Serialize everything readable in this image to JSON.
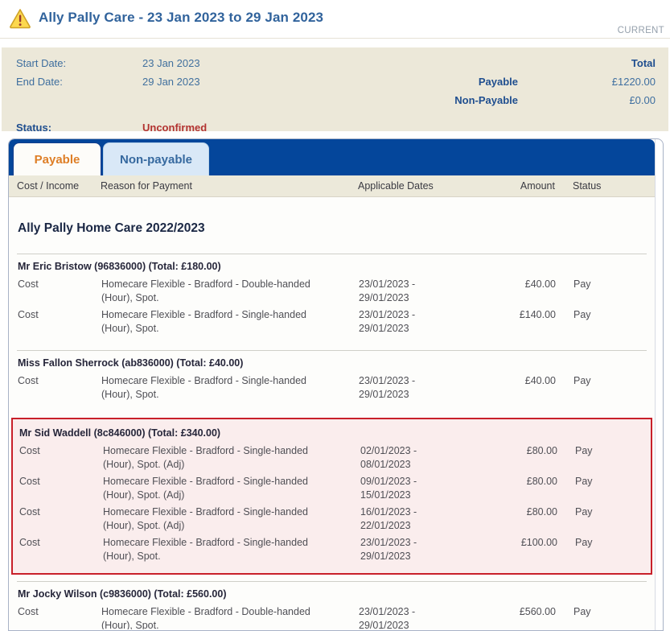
{
  "header": {
    "title": "Ally Pally Care - 23 Jan 2023 to 29 Jan 2023",
    "badge": "CURRENT",
    "icon": "warning-triangle-icon"
  },
  "summary": {
    "start_date_label": "Start Date:",
    "start_date": "23 Jan 2023",
    "end_date_label": "End Date:",
    "end_date": "29 Jan 2023",
    "status_label": "Status:",
    "status": "Unconfirmed",
    "total_label": "Total",
    "payable_label": "Payable",
    "payable_value": "£1220.00",
    "non_payable_label": "Non-Payable",
    "non_payable_value": "£0.00"
  },
  "tabs": [
    {
      "label": "Payable",
      "active": true
    },
    {
      "label": "Non-payable",
      "active": false
    }
  ],
  "table": {
    "columns": [
      "Cost / Income",
      "Reason for Payment",
      "Applicable Dates",
      "Amount",
      "Status"
    ],
    "section_title": "Ally Pally Home Care 2022/2023",
    "groups": [
      {
        "client": "Mr Eric Bristow (96836000) (Total: £180.00)",
        "highlighted": false,
        "rows": [
          {
            "type": "Cost",
            "reason": "Homecare Flexible - Bradford - Double-handed (Hour), Spot.",
            "dates": "23/01/2023 - 29/01/2023",
            "amount": "£40.00",
            "status": "Pay"
          },
          {
            "type": "Cost",
            "reason": "Homecare Flexible - Bradford - Single-handed (Hour), Spot.",
            "dates": "23/01/2023 - 29/01/2023",
            "amount": "£140.00",
            "status": "Pay"
          }
        ]
      },
      {
        "client": "Miss Fallon Sherrock (ab836000) (Total: £40.00)",
        "highlighted": false,
        "rows": [
          {
            "type": "Cost",
            "reason": "Homecare Flexible - Bradford - Single-handed (Hour), Spot.",
            "dates": "23/01/2023 - 29/01/2023",
            "amount": "£40.00",
            "status": "Pay"
          }
        ]
      },
      {
        "client": "Mr Sid Waddell (8c846000) (Total: £340.00)",
        "highlighted": true,
        "rows": [
          {
            "type": "Cost",
            "reason": "Homecare Flexible - Bradford - Single-handed (Hour), Spot. (Adj)",
            "dates": "02/01/2023 - 08/01/2023",
            "amount": "£80.00",
            "status": "Pay"
          },
          {
            "type": "Cost",
            "reason": "Homecare Flexible - Bradford - Single-handed (Hour), Spot. (Adj)",
            "dates": "09/01/2023 - 15/01/2023",
            "amount": "£80.00",
            "status": "Pay"
          },
          {
            "type": "Cost",
            "reason": "Homecare Flexible - Bradford - Single-handed (Hour), Spot. (Adj)",
            "dates": "16/01/2023 - 22/01/2023",
            "amount": "£80.00",
            "status": "Pay"
          },
          {
            "type": "Cost",
            "reason": "Homecare Flexible - Bradford - Single-handed (Hour), Spot.",
            "dates": "23/01/2023 - 29/01/2023",
            "amount": "£100.00",
            "status": "Pay"
          }
        ]
      },
      {
        "client": "Mr Jocky Wilson (c9836000) (Total: £560.00)",
        "highlighted": false,
        "rows": [
          {
            "type": "Cost",
            "reason": "Homecare Flexible - Bradford - Double-handed (Hour), Spot.",
            "dates": "23/01/2023 - 29/01/2023",
            "amount": "£560.00",
            "status": "Pay"
          }
        ]
      }
    ]
  },
  "colors": {
    "title_blue": "#31639c",
    "tabbar_navy": "#04469b",
    "active_tab_orange": "#de7e26",
    "summary_beige": "#ece8d9",
    "status_red": "#b23230",
    "highlight_border_red": "#c8202a",
    "highlight_bg_pink": "#faeded",
    "badge_gray": "#95a0ac"
  }
}
